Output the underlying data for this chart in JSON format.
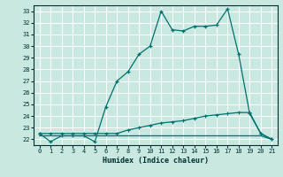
{
  "xlabel": "Humidex (Indice chaleur)",
  "xlim": [
    -0.5,
    21.5
  ],
  "ylim": [
    21.5,
    33.5
  ],
  "yticks": [
    22,
    23,
    24,
    25,
    26,
    27,
    28,
    29,
    30,
    31,
    32,
    33
  ],
  "xticks": [
    0,
    1,
    2,
    3,
    4,
    5,
    6,
    7,
    8,
    9,
    10,
    11,
    12,
    13,
    14,
    15,
    16,
    17,
    18,
    19,
    20,
    21
  ],
  "bg_color": "#c8e8e0",
  "grid_color": "#ffffff",
  "line_color": "#007070",
  "line1_x": [
    0,
    1,
    2,
    3,
    4,
    5,
    6,
    7,
    8,
    9,
    10,
    11,
    12,
    13,
    14,
    15,
    16,
    17,
    18,
    19,
    20,
    21
  ],
  "line1_y": [
    22.5,
    21.8,
    22.3,
    22.3,
    22.3,
    21.8,
    24.8,
    27.0,
    27.8,
    29.3,
    30.0,
    33.0,
    31.4,
    31.3,
    31.7,
    31.7,
    31.8,
    33.2,
    29.3,
    24.2,
    22.5,
    22.0
  ],
  "line2_x": [
    0,
    1,
    2,
    3,
    4,
    5,
    6,
    7,
    8,
    9,
    10,
    11,
    12,
    13,
    14,
    15,
    16,
    17,
    18,
    19,
    20,
    21
  ],
  "line2_y": [
    22.5,
    22.5,
    22.5,
    22.5,
    22.5,
    22.5,
    22.5,
    22.5,
    22.8,
    23.0,
    23.2,
    23.4,
    23.5,
    23.6,
    23.8,
    24.0,
    24.1,
    24.2,
    24.3,
    24.3,
    22.5,
    22.0
  ],
  "line3_x": [
    0,
    1,
    2,
    3,
    4,
    5,
    6,
    7,
    8,
    9,
    10,
    11,
    12,
    13,
    14,
    15,
    16,
    17,
    18,
    19,
    20,
    21
  ],
  "line3_y": [
    22.3,
    22.3,
    22.3,
    22.3,
    22.3,
    22.3,
    22.3,
    22.3,
    22.3,
    22.3,
    22.3,
    22.3,
    22.3,
    22.3,
    22.3,
    22.3,
    22.3,
    22.3,
    22.3,
    22.3,
    22.3,
    22.0
  ]
}
